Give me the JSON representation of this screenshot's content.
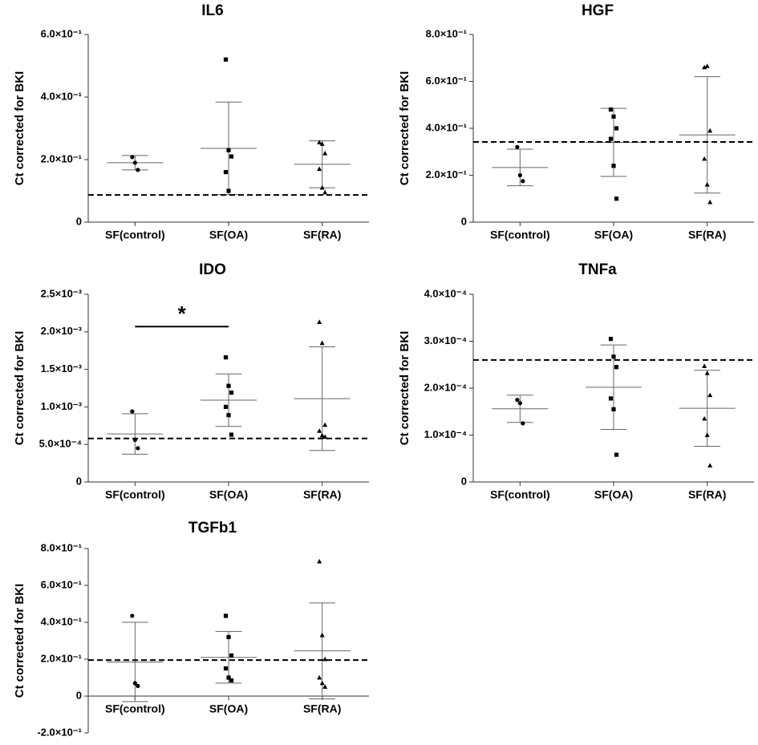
{
  "chart_data": [
    {
      "type": "dotplot",
      "title": "IL6",
      "y_label": "Ct corrected for BKI",
      "categories": [
        "SF(control)",
        "SF(OA)",
        "SF(RA)"
      ],
      "points": [
        [
          0.208,
          0.19,
          0.167
        ],
        [
          0.52,
          0.23,
          0.21,
          0.16,
          0.1
        ],
        [
          0.255,
          0.25,
          0.22,
          0.17,
          0.11,
          0.095
        ]
      ],
      "means": [
        0.19,
        0.236,
        0.185
      ],
      "sd": [
        0.023,
        0.148,
        0.075
      ],
      "reference_line": 0.087,
      "ylim": [
        0,
        0.6
      ],
      "yticks": [
        0,
        {
          "value": 0.2,
          "label": "2.0×10⁻¹"
        },
        {
          "value": 0.4,
          "label": "4.0×10⁻¹"
        },
        {
          "value": 0.6,
          "label": "6.0×10⁻¹"
        }
      ]
    },
    {
      "type": "dotplot",
      "title": "HGF",
      "y_label": "Ct corrected for BKI",
      "categories": [
        "SF(control)",
        "SF(OA)",
        "SF(RA)"
      ],
      "points": [
        [
          0.32,
          0.2,
          0.175
        ],
        [
          0.48,
          0.45,
          0.4,
          0.355,
          0.24,
          0.1
        ],
        [
          0.66,
          0.665,
          0.39,
          0.27,
          0.16,
          0.085
        ]
      ],
      "means": [
        0.233,
        0.34,
        0.372
      ],
      "sd": [
        0.078,
        0.145,
        0.248
      ],
      "reference_line": 0.342,
      "ylim": [
        0,
        0.8
      ],
      "yticks": [
        0,
        {
          "value": 0.2,
          "label": "2.0×10⁻¹"
        },
        {
          "value": 0.4,
          "label": "4.0×10⁻¹"
        },
        {
          "value": 0.6,
          "label": "6.0×10⁻¹"
        },
        {
          "value": 0.8,
          "label": "8.0×10⁻¹"
        }
      ]
    },
    {
      "type": "dotplot",
      "title": "IDO",
      "y_label": "Ct corrected for BKI",
      "categories": [
        "SF(control)",
        "SF(OA)",
        "SF(RA)"
      ],
      "points": [
        [
          0.00094,
          0.00056,
          0.00045
        ],
        [
          0.00166,
          0.00128,
          0.00119,
          0.001,
          0.00089,
          0.00063
        ],
        [
          0.00213,
          0.00185,
          0.00076,
          0.00068,
          0.00062,
          0.0006
        ]
      ],
      "means": [
        0.00064,
        0.00109,
        0.00111
      ],
      "sd": [
        0.00027,
        0.00035,
        0.00069
      ],
      "reference_line": 0.00058,
      "annotations": [
        {
          "text": "*",
          "from": 0,
          "to": 1,
          "y": 0.00207
        }
      ],
      "ylim": [
        0,
        0.0025
      ],
      "yticks": [
        0,
        {
          "value": 0.0005,
          "label": "5.0×10⁻⁴"
        },
        {
          "value": 0.001,
          "label": "1.0×10⁻³"
        },
        {
          "value": 0.0015,
          "label": "1.5×10⁻³"
        },
        {
          "value": 0.002,
          "label": "2.0×10⁻³"
        },
        {
          "value": 0.0025,
          "label": "2.5×10⁻³"
        }
      ]
    },
    {
      "type": "dotplot",
      "title": "TNFa",
      "y_label": "Ct corrected for BKI",
      "categories": [
        "SF(control)",
        "SF(OA)",
        "SF(RA)"
      ],
      "points": [
        [
          0.000175,
          0.000168,
          0.000125
        ],
        [
          0.000305,
          0.000267,
          0.000245,
          0.000178,
          0.000155,
          5.8e-05
        ],
        [
          0.000247,
          0.000232,
          0.000185,
          0.000135,
          0.0001,
          3.5e-05
        ]
      ],
      "means": [
        0.000156,
        0.000202,
        0.000157
      ],
      "sd": [
        2.9e-05,
        9e-05,
        8.1e-05
      ],
      "reference_line": 0.00026,
      "ylim": [
        0,
        0.0004
      ],
      "yticks": [
        0,
        {
          "value": 0.0001,
          "label": "1.0×10⁻⁴"
        },
        {
          "value": 0.0002,
          "label": "2.0×10⁻⁴"
        },
        {
          "value": 0.0003,
          "label": "3.0×10⁻⁴"
        },
        {
          "value": 0.0004,
          "label": "4.0×10⁻⁴"
        }
      ]
    },
    {
      "type": "dotplot",
      "title": "TGFb1",
      "y_label": "Ct corrected for BKI",
      "categories": [
        "SF(control)",
        "SF(OA)",
        "SF(RA)"
      ],
      "points": [
        [
          0.435,
          0.07,
          0.055
        ],
        [
          0.435,
          0.32,
          0.22,
          0.15,
          0.1,
          0.085
        ],
        [
          0.73,
          0.33,
          0.2,
          0.1,
          0.07,
          0.05
        ]
      ],
      "means": [
        0.185,
        0.21,
        0.245
      ],
      "sd": [
        0.215,
        0.14,
        0.26
      ],
      "reference_line": 0.195,
      "ylim": [
        -0.2,
        0.8
      ],
      "yticks": [
        {
          "value": -0.2,
          "label": "-2.0×10⁻¹"
        },
        0,
        {
          "value": 0.2,
          "label": "2.0×10⁻¹"
        },
        {
          "value": 0.4,
          "label": "4.0×10⁻¹"
        },
        {
          "value": 0.6,
          "label": "6.0×10⁻¹"
        },
        {
          "value": 0.8,
          "label": "8.0×10⁻¹"
        }
      ]
    }
  ]
}
